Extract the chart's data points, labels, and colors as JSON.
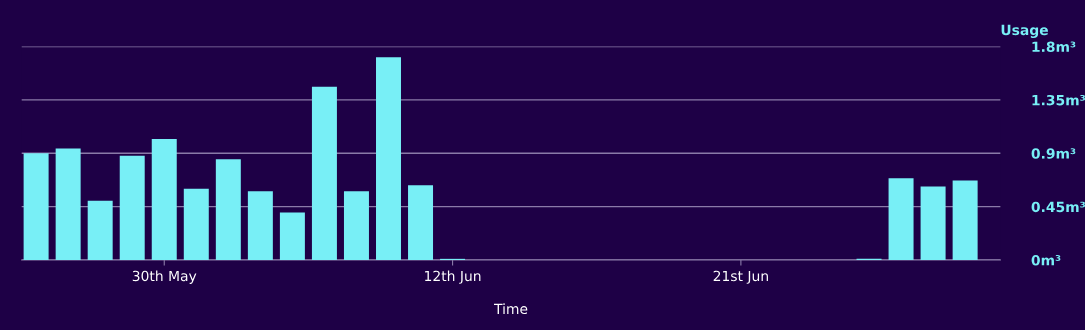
{
  "chart_data": {
    "type": "bar",
    "xlabel": "Time",
    "ylabel": "Usage",
    "categories": [
      null,
      null,
      null,
      null,
      "30th May",
      null,
      null,
      null,
      null,
      null,
      null,
      null,
      null,
      "12th Jun",
      null,
      null,
      null,
      null,
      null,
      null,
      null,
      null,
      "21st Jun",
      null,
      null,
      null,
      null,
      null,
      null,
      null
    ],
    "values": [
      0.9,
      0.94,
      0.5,
      0.88,
      1.02,
      0.6,
      0.85,
      0.58,
      0.4,
      1.46,
      0.58,
      1.71,
      0.63,
      0.01,
      0,
      0,
      0,
      0,
      0,
      0,
      0,
      0,
      0,
      0,
      0,
      0,
      0.01,
      0.69,
      0.62,
      0.67
    ],
    "color": "#78eff6",
    "ylim": [
      0,
      1.8
    ],
    "yticks": [
      {
        "value": 0,
        "label": "0m³"
      },
      {
        "value": 0.45,
        "label": "0.45m³"
      },
      {
        "value": 0.9,
        "label": "0.9m³"
      },
      {
        "value": 1.35,
        "label": "1.35m³"
      },
      {
        "value": 1.8,
        "label": "1.8m³"
      }
    ],
    "grid": "y",
    "legend": false
  }
}
